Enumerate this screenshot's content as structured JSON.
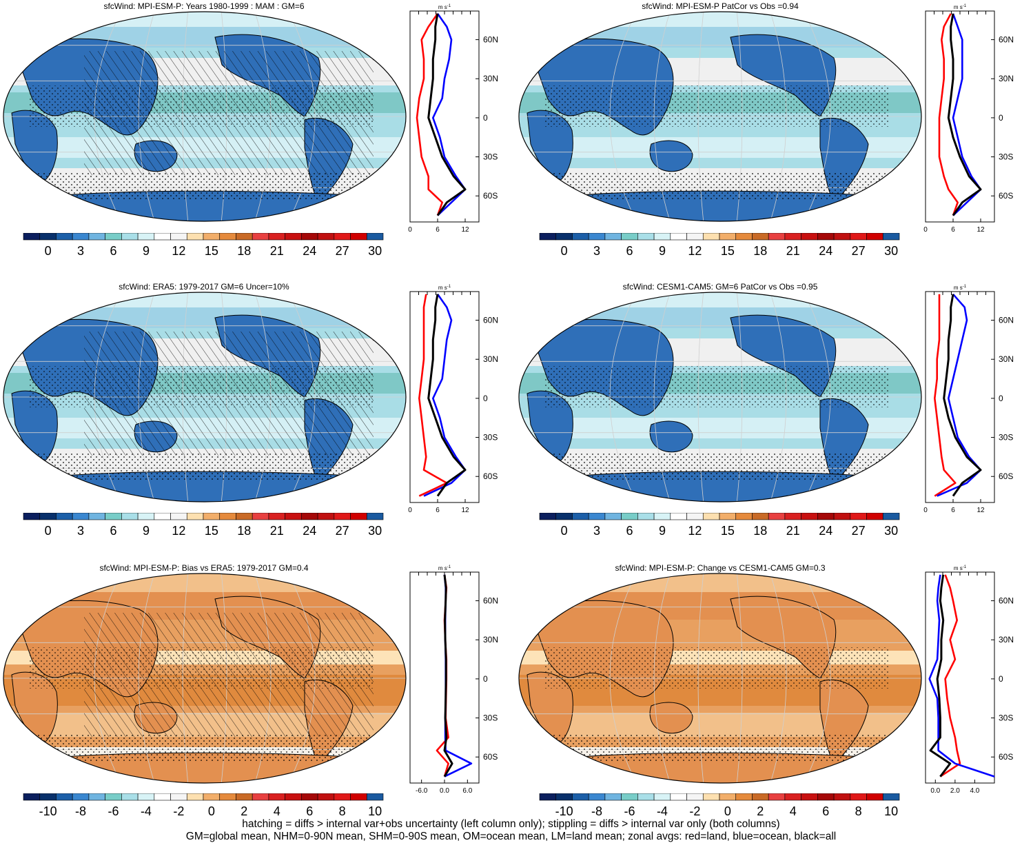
{
  "panels": [
    {
      "title": "sfcWind: MPI-ESM-P: Years 1980-1999 : MAM : GM=6",
      "colorbar": "mean",
      "zonal_xticks": [
        "0",
        "6",
        "12"
      ],
      "hatched": true
    },
    {
      "title": "sfcWind: MPI-ESM-P PatCor vs Obs =0.94",
      "colorbar": "mean",
      "zonal_xticks": [
        "0",
        "6",
        "12"
      ],
      "hatched": false
    },
    {
      "title": "sfcWind: ERA5: 1979-2017 GM=6 Uncer=10%",
      "colorbar": "mean",
      "zonal_xticks": [
        "0",
        "6",
        "12"
      ],
      "hatched": true
    },
    {
      "title": "sfcWind: CESM1-CAM5: GM=6 PatCor vs Obs =0.95",
      "colorbar": "mean",
      "zonal_xticks": [
        "0",
        "6",
        "12"
      ],
      "hatched": false
    },
    {
      "title": "sfcWind: MPI-ESM-P: Bias vs ERA5: 1979-2017 GM=0.4",
      "colorbar": "diff",
      "zonal_xticks": [
        "-6.0",
        "0.0",
        "6.0"
      ],
      "hatched": true
    },
    {
      "title": "sfcWind: MPI-ESM-P: Change vs CESM1-CAM5 GM=0.3",
      "colorbar": "diff",
      "zonal_xticks": [
        "0.0",
        "2.0",
        "4.0"
      ],
      "hatched": false
    }
  ],
  "zonal_unit": "m s",
  "zonal_unit_sup": "-1",
  "lat_labels": [
    "60N",
    "30N",
    "0",
    "30S",
    "60S"
  ],
  "colorbar_mean_labels": [
    "0",
    "3",
    "6",
    "9",
    "12",
    "15",
    "18",
    "21",
    "24",
    "27",
    "30"
  ],
  "colorbar_diff_labels": [
    "-10",
    "-8",
    "-6",
    "-4",
    "-2",
    "0",
    "2",
    "4",
    "6",
    "8",
    "10"
  ],
  "colorbar_colors": [
    "#0b1f5e",
    "#08306b",
    "#1c5fa8",
    "#3a87d0",
    "#6fb4e0",
    "#78cdc8",
    "#a9dfe8",
    "#d8f3f6",
    "#ffffff",
    "#f5f5f5",
    "#fde0b0",
    "#f2ae6a",
    "#e58a3c",
    "#c96a26",
    "#e84040",
    "#d92020",
    "#c81010",
    "#a50808",
    "#c01010",
    "#e01818",
    "#d00000",
    "#1a5aa0"
  ],
  "series_colors": {
    "land": "#ff0000",
    "ocean": "#0000ff",
    "all": "#000000"
  },
  "footnote_line1": "hatching = diffs > internal var+obs uncertainty (left column only); stippling = diffs > internal var only (both columns)",
  "footnote_line2": "GM=global mean, NHM=0-90N mean, SHM=0-90S mean, OM=ocean mean, LM=land mean; zonal avgs: red=land, blue=ocean, black=all",
  "chart_data": [
    {
      "type": "heatmap",
      "title": "sfcWind: MPI-ESM-P: Years 1980-1999 : MAM : GM=6",
      "zonal_mean": {
        "xlim": [
          0,
          15
        ],
        "lat_ticks": [
          "60N",
          "30N",
          "0",
          "30S",
          "60S"
        ],
        "series": [
          {
            "name": "land",
            "color": "red",
            "lat": [
              80,
              70,
              60,
              45,
              30,
              15,
              0,
              -15,
              -30,
              -45,
              -55,
              -65,
              -75
            ],
            "values": [
              6,
              4,
              2.5,
              3,
              3,
              2,
              1.5,
              2,
              2.5,
              4,
              4,
              7,
              6
            ]
          },
          {
            "name": "ocean",
            "color": "blue",
            "lat": [
              80,
              70,
              60,
              45,
              30,
              15,
              0,
              -15,
              -30,
              -45,
              -55,
              -65,
              -75
            ],
            "values": [
              6,
              8,
              9,
              8.5,
              7.5,
              7,
              5,
              6.5,
              7.5,
              10,
              12,
              9,
              6
            ]
          },
          {
            "name": "all",
            "color": "black",
            "lat": [
              80,
              70,
              60,
              45,
              30,
              15,
              0,
              -15,
              -30,
              -45,
              -55,
              -65,
              -75
            ],
            "values": [
              6,
              5.5,
              5.5,
              5,
              5,
              4.5,
              4,
              5.5,
              7,
              9.5,
              12,
              8,
              6
            ]
          }
        ]
      }
    },
    {
      "type": "heatmap",
      "title": "sfcWind: MPI-ESM-P PatCor vs Obs =0.94",
      "zonal_mean": {
        "xlim": [
          0,
          15
        ],
        "lat_ticks": [
          "60N",
          "30N",
          "0",
          "30S",
          "60S"
        ],
        "series": [
          {
            "name": "land",
            "color": "red",
            "lat": [
              80,
              70,
              60,
              45,
              30,
              15,
              0,
              -15,
              -30,
              -45,
              -55,
              -65,
              -75
            ],
            "values": [
              5.5,
              4,
              3.5,
              4,
              4,
              3.5,
              3,
              3,
              3,
              4,
              5,
              7,
              6
            ]
          },
          {
            "name": "ocean",
            "color": "blue",
            "lat": [
              80,
              70,
              60,
              45,
              30,
              15,
              0,
              -15,
              -30,
              -45,
              -55,
              -65,
              -75
            ],
            "values": [
              6,
              7,
              8,
              8,
              8,
              7,
              6,
              7,
              8,
              10,
              12,
              9,
              6
            ]
          },
          {
            "name": "all",
            "color": "black",
            "lat": [
              80,
              70,
              60,
              45,
              30,
              15,
              0,
              -15,
              -30,
              -45,
              -55,
              -65,
              -75
            ],
            "values": [
              6,
              5.5,
              5.5,
              6,
              6,
              5.5,
              5,
              6,
              7.5,
              9.5,
              12,
              8,
              6
            ]
          }
        ]
      }
    },
    {
      "type": "heatmap",
      "title": "sfcWind: ERA5: 1979-2017 GM=6 Uncer=10%",
      "zonal_mean": {
        "xlim": [
          0,
          15
        ],
        "lat_ticks": [
          "60N",
          "30N",
          "0",
          "30S",
          "60S"
        ],
        "series": [
          {
            "name": "land",
            "color": "red",
            "lat": [
              80,
              70,
              60,
              45,
              30,
              15,
              0,
              -15,
              -30,
              -45,
              -55,
              -65,
              -75
            ],
            "values": [
              3.5,
              3,
              3,
              3,
              3,
              2.5,
              2,
              2.5,
              3,
              3.5,
              3,
              8,
              2
            ]
          },
          {
            "name": "ocean",
            "color": "blue",
            "lat": [
              80,
              70,
              60,
              45,
              30,
              15,
              0,
              -15,
              -30,
              -45,
              -55,
              -65,
              -75
            ],
            "values": [
              6,
              8,
              9,
              8,
              7.5,
              7,
              5,
              6.5,
              7.5,
              10,
              12,
              9,
              3
            ]
          },
          {
            "name": "all",
            "color": "black",
            "lat": [
              80,
              70,
              60,
              45,
              30,
              15,
              0,
              -15,
              -30,
              -45,
              -55,
              -65,
              -75
            ],
            "values": [
              6,
              5.5,
              5.5,
              5,
              5,
              4.5,
              4,
              5.5,
              7,
              9.5,
              12,
              8,
              6
            ]
          }
        ]
      }
    },
    {
      "type": "heatmap",
      "title": "sfcWind: CESM1-CAM5: GM=6 PatCor vs Obs =0.95",
      "zonal_mean": {
        "xlim": [
          0,
          15
        ],
        "lat_ticks": [
          "60N",
          "30N",
          "0",
          "30S",
          "60S"
        ],
        "series": [
          {
            "name": "land",
            "color": "red",
            "lat": [
              80,
              70,
              60,
              45,
              30,
              15,
              0,
              -15,
              -30,
              -45,
              -55,
              -65,
              -75
            ],
            "values": [
              3,
              3,
              3,
              3,
              2.5,
              2.5,
              2,
              2.5,
              3,
              3.5,
              4,
              6.5,
              2
            ]
          },
          {
            "name": "ocean",
            "color": "blue",
            "lat": [
              80,
              70,
              60,
              45,
              30,
              15,
              0,
              -15,
              -30,
              -45,
              -55,
              -65,
              -75
            ],
            "values": [
              6,
              8.5,
              9,
              8,
              7,
              6,
              5,
              6,
              7,
              9.5,
              12,
              9,
              2.5
            ]
          },
          {
            "name": "all",
            "color": "black",
            "lat": [
              80,
              70,
              60,
              45,
              30,
              15,
              0,
              -15,
              -30,
              -45,
              -55,
              -65,
              -75
            ],
            "values": [
              6,
              5.5,
              5.5,
              5,
              5,
              4.5,
              4,
              5,
              6.5,
              9,
              12,
              8,
              6
            ]
          }
        ]
      }
    },
    {
      "type": "heatmap",
      "title": "sfcWind: MPI-ESM-P: Bias vs ERA5: 1979-2017 GM=0.4",
      "zonal_mean": {
        "xlim": [
          -9,
          9
        ],
        "lat_ticks": [
          "60N",
          "30N",
          "0",
          "30S",
          "60S"
        ],
        "series": [
          {
            "name": "land",
            "color": "red",
            "lat": [
              80,
              70,
              60,
              45,
              30,
              15,
              0,
              -15,
              -30,
              -45,
              -55,
              -65,
              -75
            ],
            "values": [
              0,
              0.5,
              0.3,
              0,
              0.2,
              0.5,
              0.5,
              0.4,
              0.3,
              1,
              -2,
              1,
              0
            ]
          },
          {
            "name": "ocean",
            "color": "blue",
            "lat": [
              80,
              70,
              60,
              45,
              30,
              15,
              0,
              -15,
              -30,
              -45,
              -55,
              -65,
              -75
            ],
            "values": [
              0,
              0.3,
              0.3,
              0.2,
              0.2,
              0.3,
              0.3,
              0.3,
              0.2,
              0.2,
              0.3,
              7,
              0
            ]
          },
          {
            "name": "all",
            "color": "black",
            "lat": [
              80,
              70,
              60,
              45,
              30,
              15,
              0,
              -15,
              -30,
              -45,
              -55,
              -65,
              -75
            ],
            "values": [
              0,
              0.4,
              0.3,
              0.1,
              0.2,
              0.4,
              0.4,
              0.3,
              0.2,
              0.5,
              0,
              2,
              0
            ]
          }
        ]
      }
    },
    {
      "type": "heatmap",
      "title": "sfcWind: MPI-ESM-P: Change vs CESM1-CAM5 GM=0.3",
      "zonal_mean": {
        "xlim": [
          -1,
          6
        ],
        "lat_ticks": [
          "60N",
          "30N",
          "0",
          "30S",
          "60S"
        ],
        "series": [
          {
            "name": "land",
            "color": "red",
            "lat": [
              80,
              70,
              60,
              45,
              30,
              15,
              0,
              -15,
              -30,
              -45,
              -55,
              -65,
              -75
            ],
            "values": [
              1,
              1.5,
              1.8,
              2.2,
              1.5,
              2,
              1,
              1.2,
              1.5,
              2,
              2.2,
              2.5,
              0.5
            ]
          },
          {
            "name": "ocean",
            "color": "blue",
            "lat": [
              80,
              70,
              60,
              45,
              30,
              15,
              0,
              -15,
              -30,
              -45,
              -55,
              -65,
              -75
            ],
            "values": [
              0.5,
              0.3,
              0.2,
              0.4,
              0.3,
              0.2,
              -0.6,
              0.2,
              0.3,
              0.3,
              0.3,
              2,
              6
            ]
          },
          {
            "name": "all",
            "color": "black",
            "lat": [
              80,
              70,
              60,
              45,
              30,
              15,
              0,
              -15,
              -30,
              -45,
              -55,
              -65,
              -75
            ],
            "values": [
              0.8,
              0.6,
              0.5,
              0.8,
              0.6,
              0.6,
              0.2,
              0.4,
              0.5,
              0.5,
              -0.5,
              1.5,
              0.5
            ]
          }
        ]
      }
    }
  ]
}
